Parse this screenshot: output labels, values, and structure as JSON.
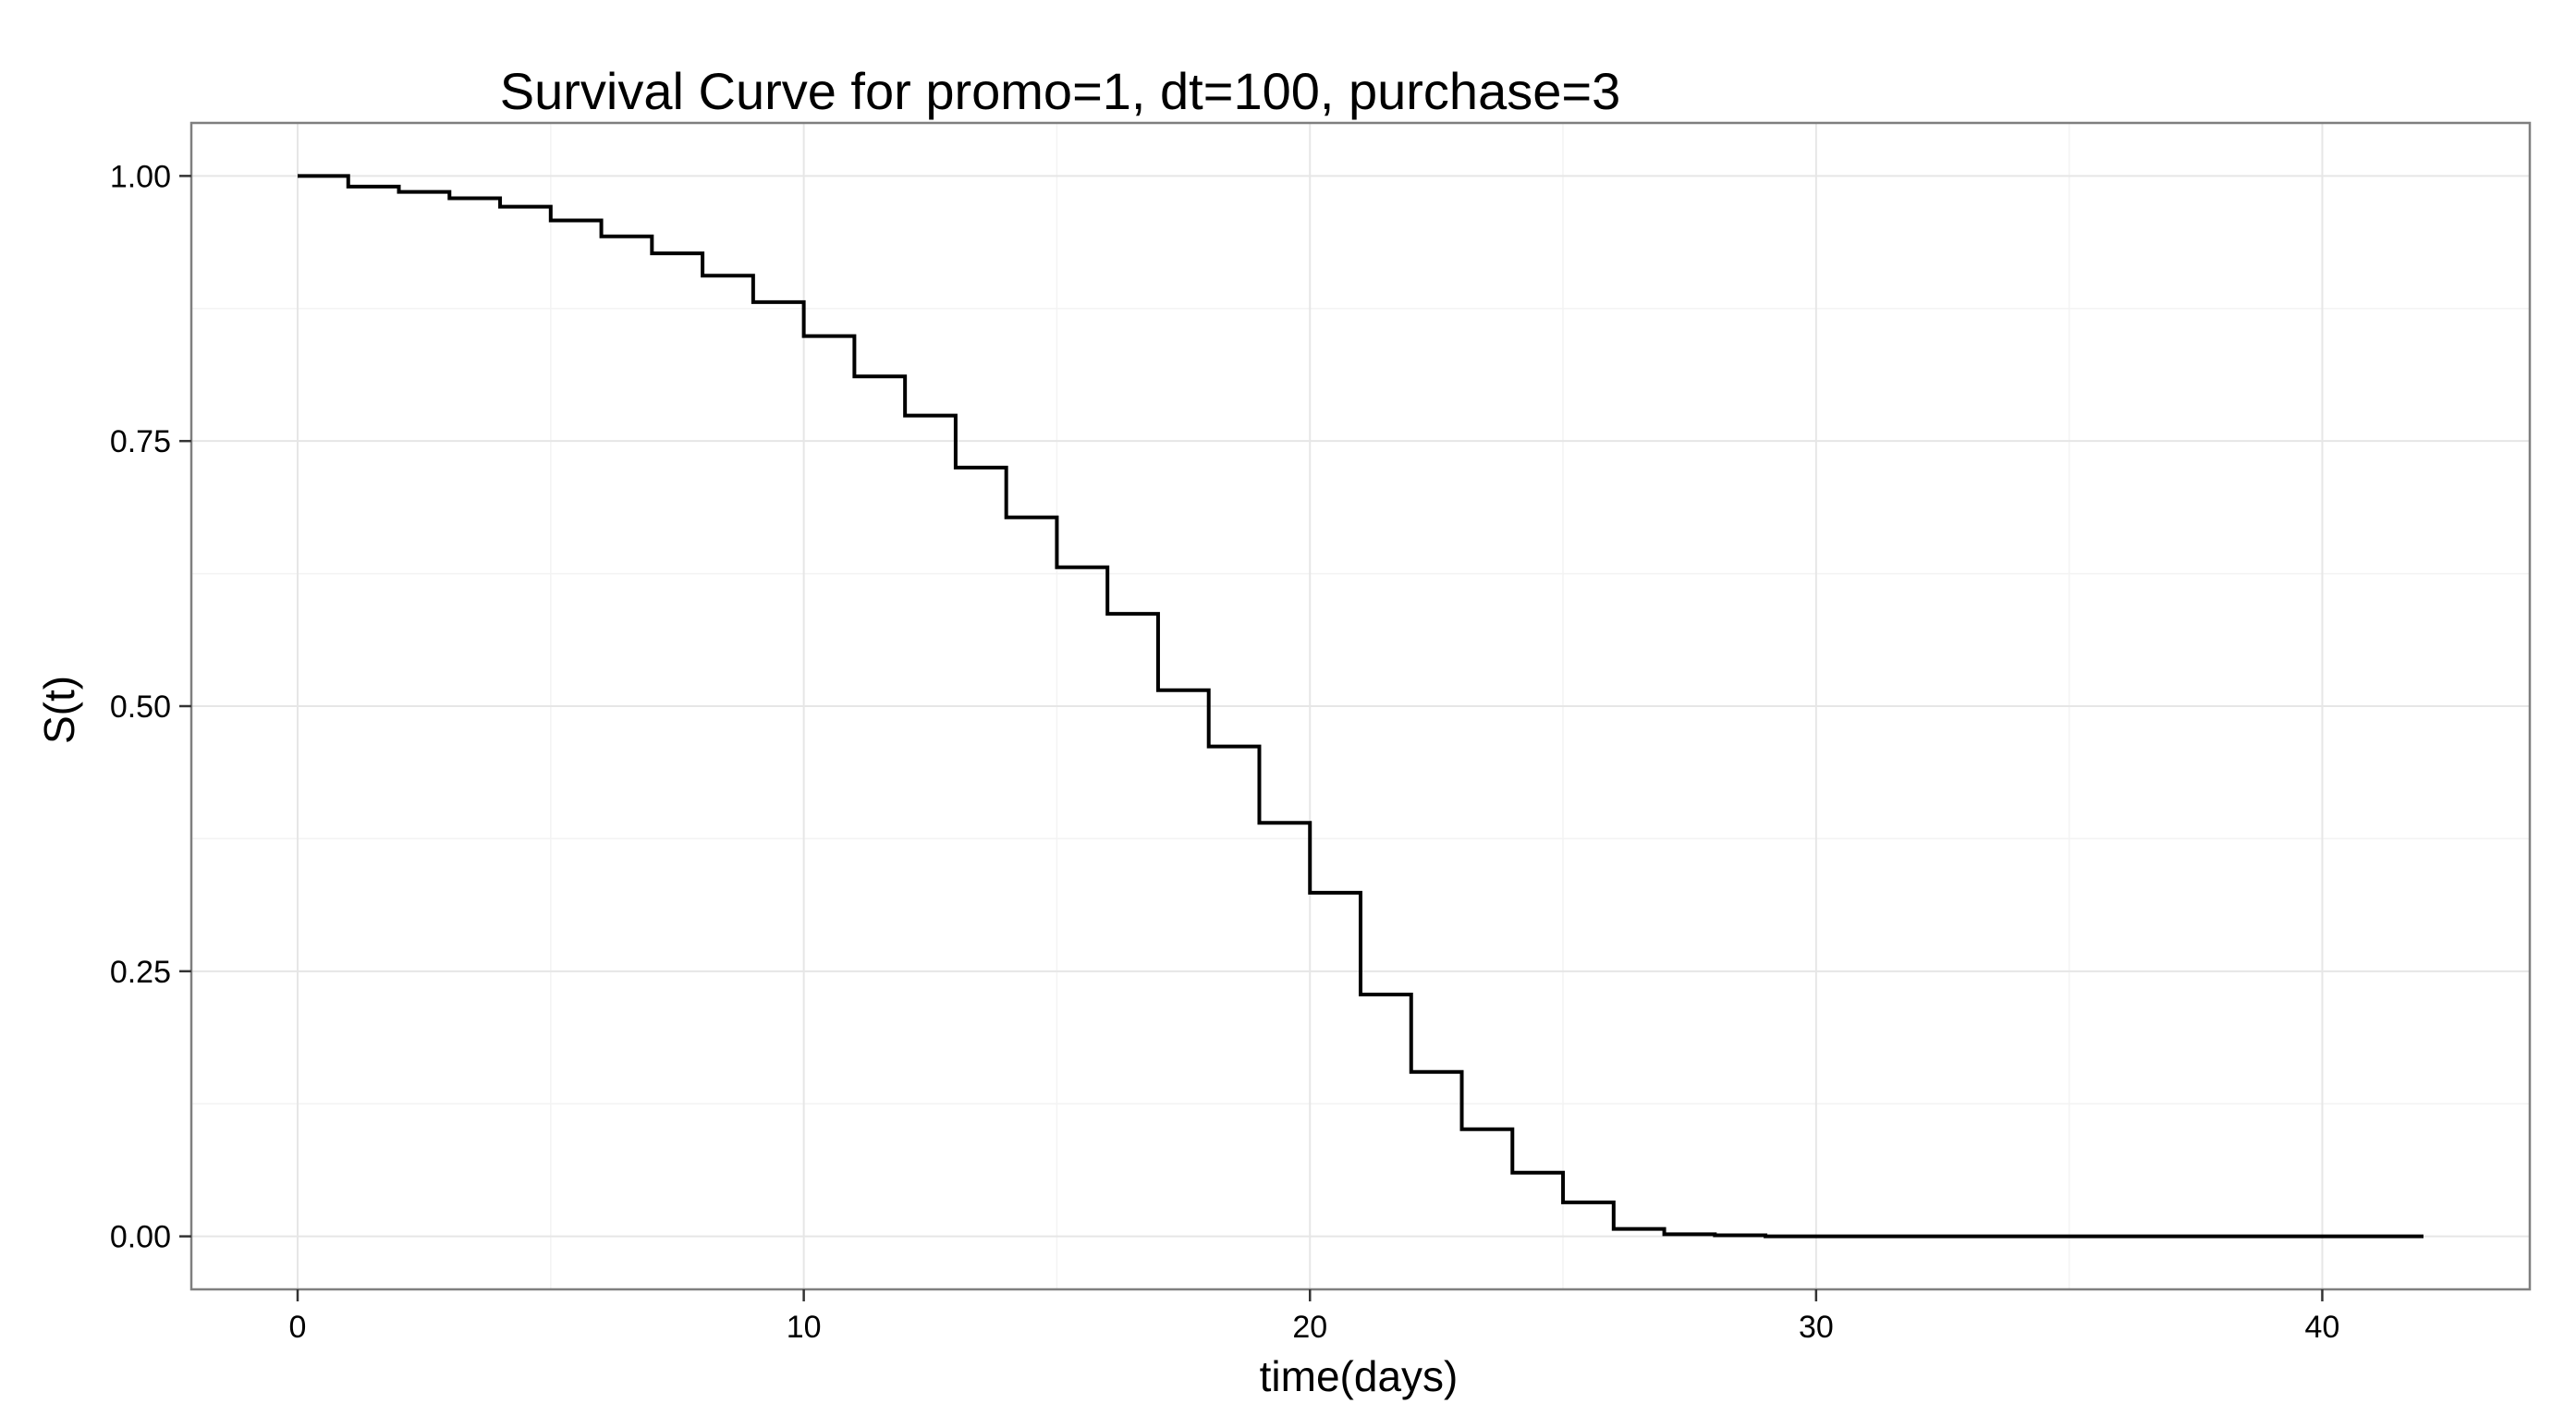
{
  "chart_data": {
    "type": "line",
    "step": true,
    "title": "Survival Curve for promo=1, dt=100, purchase=3",
    "xlabel": "time(days)",
    "ylabel": "S(t)",
    "xlim": [
      -2.1,
      44.1
    ],
    "ylim": [
      -0.05,
      1.05
    ],
    "x_ticks": [
      0,
      10,
      20,
      30,
      40
    ],
    "x_tick_labels": [
      "0",
      "10",
      "20",
      "30",
      "40"
    ],
    "y_ticks": [
      0,
      0.25,
      0.5,
      0.75,
      1
    ],
    "y_tick_labels": [
      "0.00",
      "0.25",
      "0.50",
      "0.75",
      "1.00"
    ],
    "grid": true,
    "legend": "none",
    "series": [
      {
        "x": [
          0,
          1,
          2,
          3,
          4,
          5,
          6,
          7,
          8,
          9,
          10,
          11,
          12,
          13,
          14,
          15,
          16,
          17,
          18,
          19,
          20,
          21,
          22,
          23,
          24,
          25,
          26,
          27,
          28,
          29,
          30,
          31,
          32,
          33,
          34,
          35,
          36,
          37,
          38,
          39,
          40,
          41,
          42
        ],
        "values": [
          1.0,
          0.99,
          0.985,
          0.979,
          0.971,
          0.958,
          0.943,
          0.927,
          0.906,
          0.881,
          0.849,
          0.811,
          0.774,
          0.725,
          0.678,
          0.631,
          0.587,
          0.515,
          0.462,
          0.39,
          0.324,
          0.228,
          0.155,
          0.101,
          0.06,
          0.032,
          0.007,
          0.002,
          0.001,
          0.0,
          0.0,
          0.0,
          0.0,
          0.0,
          0.0,
          0.0,
          0.0,
          0.0,
          0.0,
          0.0,
          0.0,
          0.0,
          0.0
        ]
      }
    ],
    "colors": {
      "background": "#ffffff",
      "panel_border": "#7f7f7f",
      "major_grid": "#e6e6e6",
      "minor_grid": "#f3f3f3",
      "line": "#000000"
    }
  }
}
